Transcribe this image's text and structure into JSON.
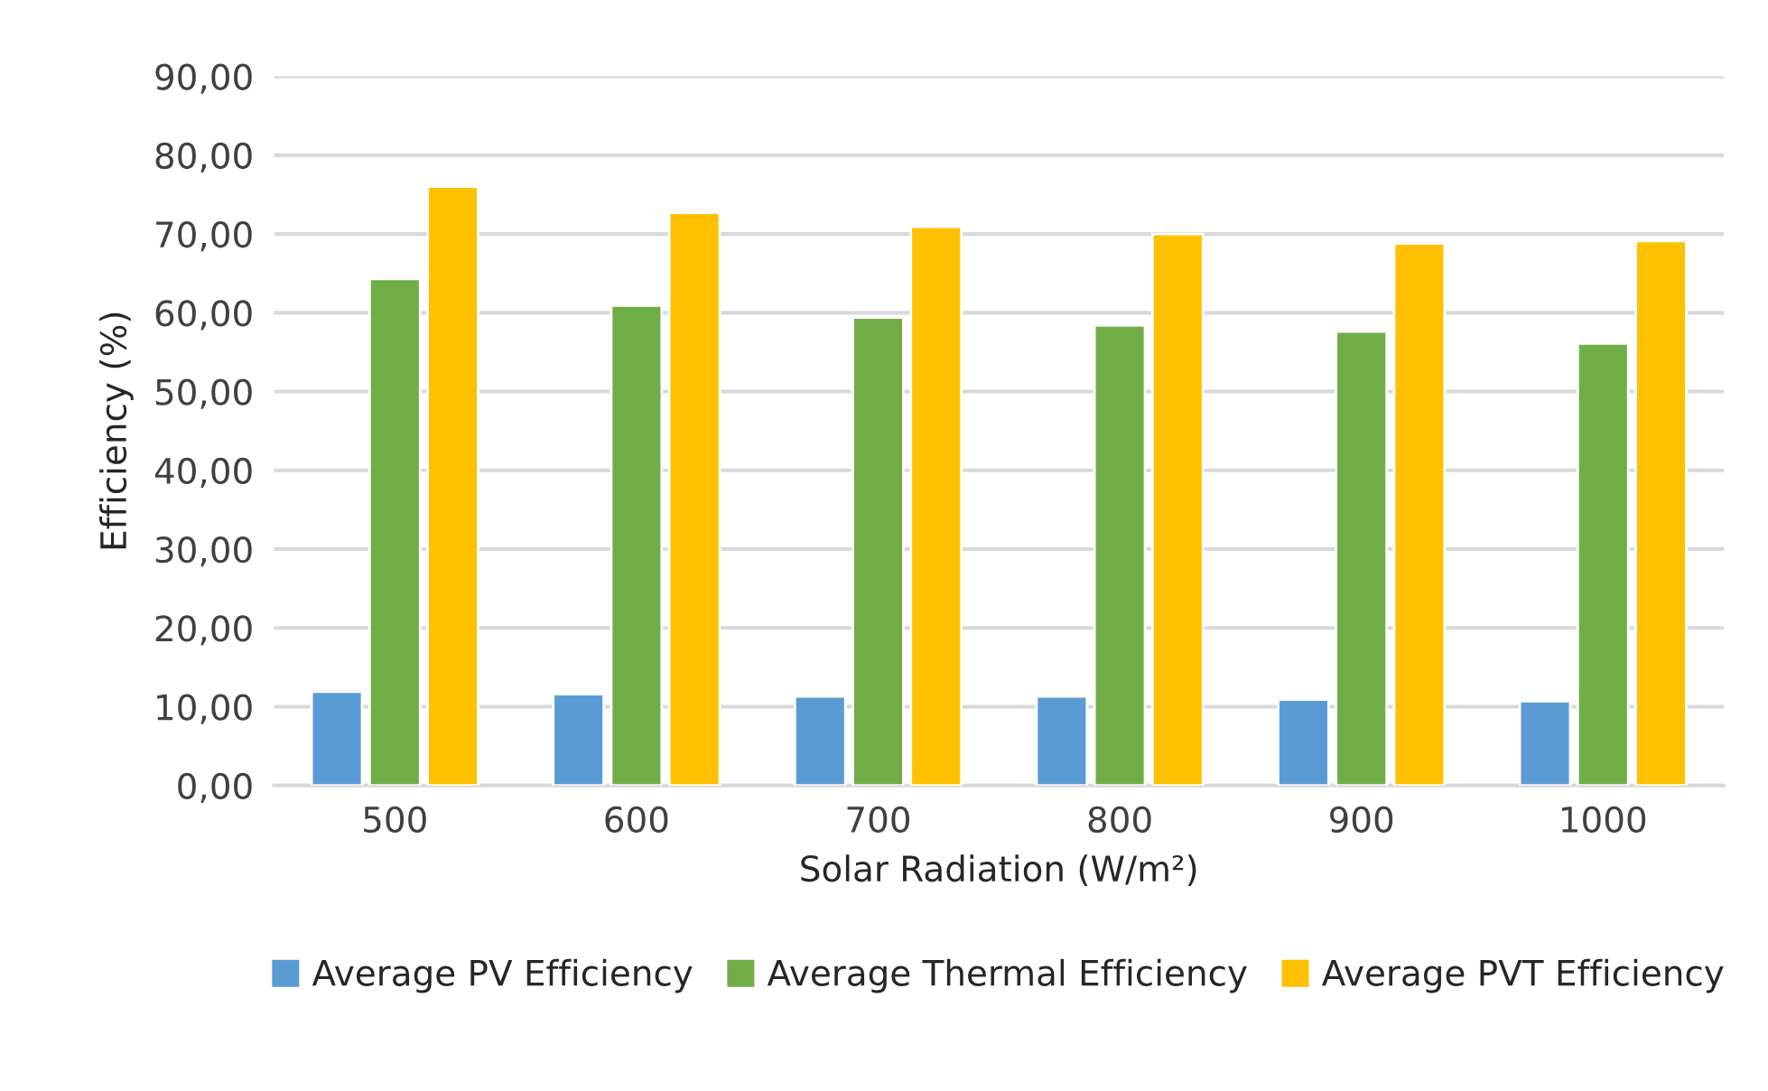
{
  "chart_data": {
    "type": "bar",
    "xlabel": "Solar Radiation (W/m²)",
    "ylabel": "Efficiency (%)",
    "categories": [
      "500",
      "600",
      "700",
      "800",
      "900",
      "1000"
    ],
    "series": [
      {
        "name": "Average PV Efficiency",
        "color": "#5b9bd5",
        "values": [
          11.9,
          11.6,
          11.3,
          11.3,
          10.9,
          10.7
        ]
      },
      {
        "name": "Average Thermal Efficiency",
        "color": "#70ad47",
        "values": [
          64.3,
          60.9,
          59.4,
          58.4,
          57.6,
          56.1
        ]
      },
      {
        "name": "Average PVT Efficiency",
        "color": "#ffc000",
        "values": [
          76.0,
          72.7,
          70.9,
          70.0,
          68.8,
          69.1
        ]
      }
    ],
    "ylim": [
      0,
      90
    ],
    "yticks": [
      {
        "value": 0,
        "label": "0,00"
      },
      {
        "value": 10,
        "label": "10,00"
      },
      {
        "value": 20,
        "label": "20,00"
      },
      {
        "value": 30,
        "label": "30,00"
      },
      {
        "value": 40,
        "label": "40,00"
      },
      {
        "value": 50,
        "label": "50,00"
      },
      {
        "value": 60,
        "label": "60,00"
      },
      {
        "value": 70,
        "label": "70,00"
      },
      {
        "value": 80,
        "label": "80,00"
      },
      {
        "value": 90,
        "label": "90,00"
      }
    ],
    "grid": "y",
    "legend": "bottom"
  }
}
